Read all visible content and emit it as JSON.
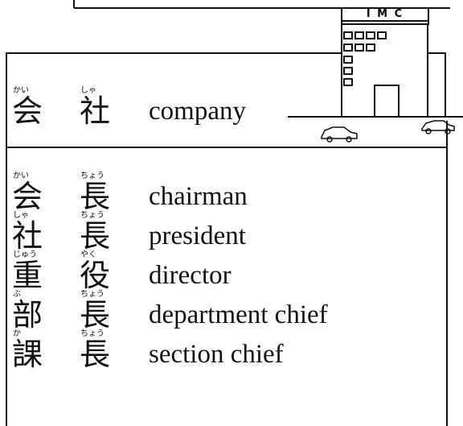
{
  "header": {
    "kanji": [
      {
        "char": "会",
        "reading": "かい"
      },
      {
        "char": "社",
        "reading": "しゃ"
      }
    ],
    "english": "company",
    "sign": "I M C"
  },
  "entries": [
    {
      "kanji": [
        {
          "char": "会",
          "reading": "かい"
        },
        {
          "char": "長",
          "reading": "ちょう"
        }
      ],
      "english": "chairman"
    },
    {
      "kanji": [
        {
          "char": "社",
          "reading": "しゃ"
        },
        {
          "char": "長",
          "reading": "ちょう"
        }
      ],
      "english": "president"
    },
    {
      "kanji": [
        {
          "char": "重",
          "reading": "じゅう"
        },
        {
          "char": "役",
          "reading": "やく"
        }
      ],
      "english": "director"
    },
    {
      "kanji": [
        {
          "char": "部",
          "reading": "ぶ"
        },
        {
          "char": "長",
          "reading": "ちょう"
        }
      ],
      "english": "department chief"
    },
    {
      "kanji": [
        {
          "char": "課",
          "reading": "か"
        },
        {
          "char": "長",
          "reading": "ちょう"
        }
      ],
      "english": "section chief"
    }
  ]
}
